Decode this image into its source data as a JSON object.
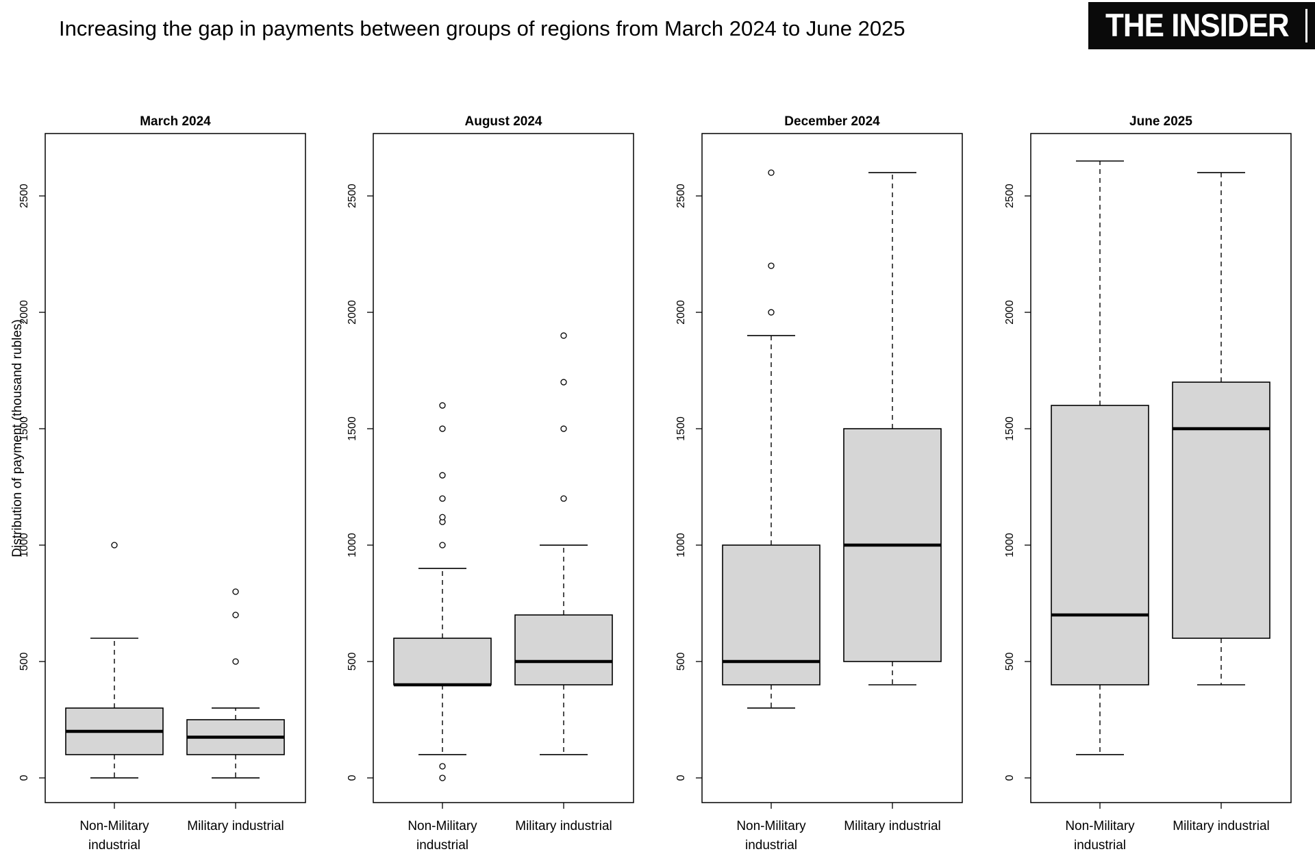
{
  "title": "Increasing the gap in payments between groups of regions from March 2024 to June 2025",
  "logo": {
    "text": "THE INSIDER"
  },
  "chart_data": {
    "type": "boxplot",
    "title": "Increasing the gap in payments between groups of regions from March 2024 to June 2025",
    "ylabel": "Distribution of payment (thousand rubles)",
    "yticks": [
      0,
      500,
      1000,
      1500,
      2000,
      2500
    ],
    "ylim": [
      -106,
      2768
    ],
    "grid": false,
    "legend": "none",
    "box_fill": "#d6d6d6",
    "box_stroke": "#000000",
    "categories": [
      "Non-Military industrial",
      "Military industrial"
    ],
    "category_label_lines": [
      [
        "Non-Military",
        "industrial"
      ],
      [
        "Military industrial"
      ]
    ],
    "panels": [
      {
        "title": "March 2024",
        "groups": [
          {
            "label": "Non-Military industrial",
            "whisker_low": 0,
            "q1": 100,
            "median": 200,
            "q3": 300,
            "whisker_high": 600,
            "outliers": [
              1000
            ]
          },
          {
            "label": "Military industrial",
            "whisker_low": 0,
            "q1": 100,
            "median": 175,
            "q3": 250,
            "whisker_high": 300,
            "outliers": [
              500,
              700,
              800
            ]
          }
        ]
      },
      {
        "title": "August 2024",
        "groups": [
          {
            "label": "Non-Military industrial",
            "whisker_low": 100,
            "q1": 400,
            "median": 400,
            "q3": 600,
            "whisker_high": 900,
            "outliers": [
              0,
              50,
              1000,
              1100,
              1120,
              1200,
              1300,
              1500,
              1600
            ]
          },
          {
            "label": "Military industrial",
            "whisker_low": 100,
            "q1": 400,
            "median": 500,
            "q3": 700,
            "whisker_high": 1000,
            "outliers": [
              1200,
              1500,
              1700,
              1900
            ]
          }
        ]
      },
      {
        "title": "December 2024",
        "groups": [
          {
            "label": "Non-Military industrial",
            "whisker_low": 300,
            "q1": 400,
            "median": 500,
            "q3": 1000,
            "whisker_high": 1900,
            "outliers": [
              2000,
              2200,
              2600
            ]
          },
          {
            "label": "Military industrial",
            "whisker_low": 400,
            "q1": 500,
            "median": 1000,
            "q3": 1500,
            "whisker_high": 2600,
            "outliers": []
          }
        ]
      },
      {
        "title": "June 2025",
        "groups": [
          {
            "label": "Non-Military industrial",
            "whisker_low": 100,
            "q1": 400,
            "median": 700,
            "q3": 1600,
            "whisker_high": 2650,
            "outliers": []
          },
          {
            "label": "Military industrial",
            "whisker_low": 400,
            "q1": 600,
            "median": 1500,
            "q3": 1700,
            "whisker_high": 2600,
            "outliers": []
          }
        ]
      }
    ]
  }
}
